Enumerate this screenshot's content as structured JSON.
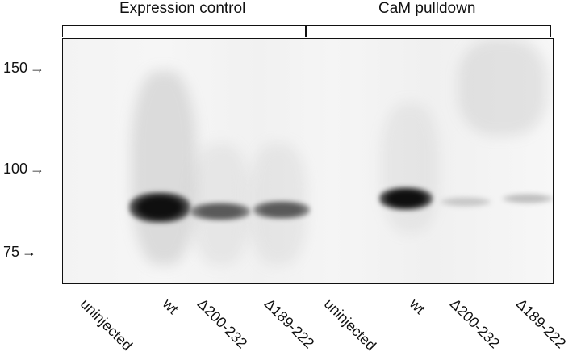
{
  "groups": {
    "expression": "Expression control",
    "pulldown": "CaM pulldown"
  },
  "markers": [
    "150",
    "100",
    "75"
  ],
  "marker_arrow": "→",
  "lanes": [
    "uninjected",
    "wt",
    "Δ200-232",
    "Δ189-222",
    "uninjected",
    "wt",
    "Δ200-232",
    "Δ189-222"
  ],
  "band_intensities": [
    0.0,
    1.0,
    0.65,
    0.65,
    0.0,
    1.0,
    0.12,
    0.16
  ]
}
